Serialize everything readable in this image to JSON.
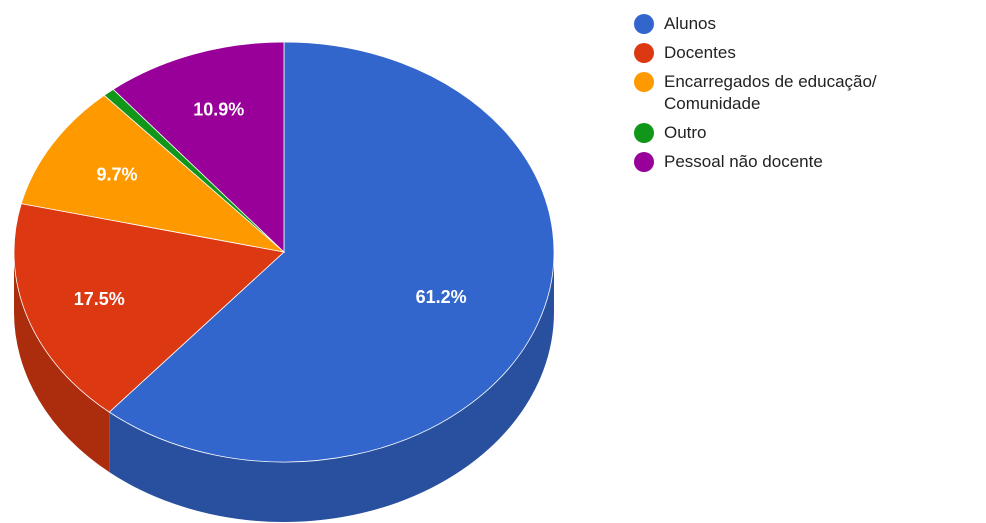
{
  "chart_data": {
    "type": "pie",
    "style": "3d",
    "title": "",
    "legend_position": "right",
    "series": [
      {
        "name": "Alunos",
        "value": 61.2,
        "label": "61.2%",
        "color": "#3366cc"
      },
      {
        "name": "Docentes",
        "value": 17.5,
        "label": "17.5%",
        "color": "#dc3912"
      },
      {
        "name": "Encarregados de educação/\nComunidade",
        "value": 9.7,
        "label": "9.7%",
        "color": "#ff9900"
      },
      {
        "name": "Outro",
        "value": 0.7,
        "label": "",
        "color": "#109618"
      },
      {
        "name": "Pessoal não docente",
        "value": 10.9,
        "label": "10.9%",
        "color": "#990099"
      }
    ]
  }
}
